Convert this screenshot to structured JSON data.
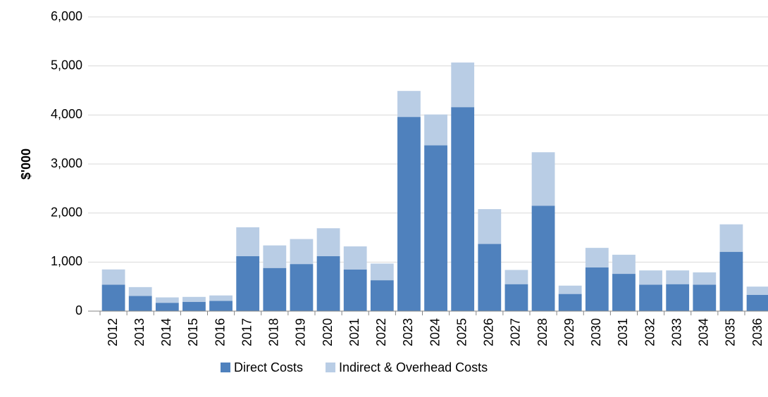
{
  "chart_data": {
    "type": "stacked_bar",
    "y_label": "$'000",
    "categories": [
      "2012",
      "2013",
      "2014",
      "2015",
      "2016",
      "2017",
      "2018",
      "2019",
      "2020",
      "2021",
      "2022",
      "2023",
      "2024",
      "2025",
      "2026",
      "2027",
      "2028",
      "2029",
      "2030",
      "2031",
      "2032",
      "2033",
      "2034",
      "2035",
      "2036"
    ],
    "series": [
      {
        "name": "Direct Costs",
        "color": "#4f81bd",
        "values": [
          540,
          310,
          170,
          190,
          210,
          1120,
          880,
          960,
          1120,
          850,
          630,
          3960,
          3380,
          4160,
          1370,
          550,
          2150,
          350,
          890,
          760,
          540,
          550,
          540,
          1210,
          330
        ]
      },
      {
        "name": "Indirect & Overhead Costs",
        "color": "#b9cde5",
        "values": [
          310,
          180,
          110,
          100,
          110,
          590,
          460,
          510,
          570,
          470,
          340,
          530,
          630,
          910,
          710,
          290,
          1090,
          170,
          400,
          390,
          290,
          280,
          250,
          560,
          170
        ]
      }
    ],
    "ylim": [
      0,
      6000
    ],
    "yticks": [
      0,
      {
        "value": 1000,
        "label": "1,000"
      },
      {
        "value": 2000,
        "label": "2,000"
      },
      {
        "value": 3000,
        "label": "3,000"
      },
      {
        "value": 4000,
        "label": "4,000"
      },
      {
        "value": 5000,
        "label": "5,000"
      },
      {
        "value": 6000,
        "label": "6,000"
      }
    ],
    "grid": true,
    "legend": "bottom"
  }
}
